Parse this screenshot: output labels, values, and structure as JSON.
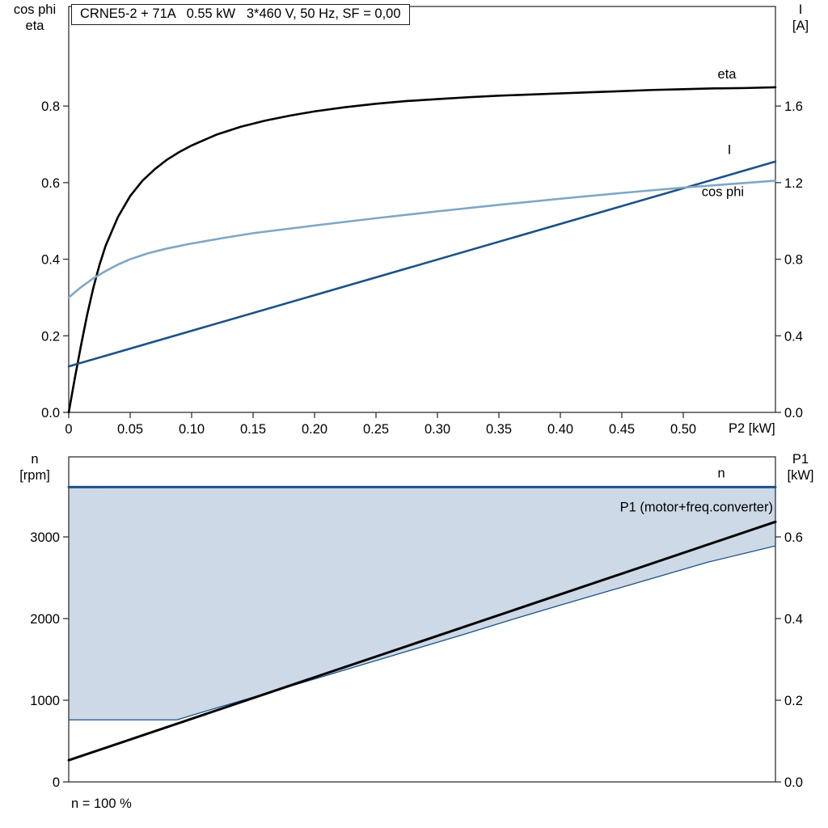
{
  "axes_labels": {
    "top_left_line1": "cos phi",
    "top_left_line2": "eta",
    "top_right_line1": "I",
    "top_right_line2": "[A]",
    "bottom_left_line1": "n",
    "bottom_left_line2": "[rpm]",
    "bottom_right_line1": "P1",
    "bottom_right_line2": "[kW]"
  },
  "colors": {
    "black": "#000000",
    "dark_blue": "#1c5286",
    "light_blue": "#7fa6c5",
    "fill": "#cdd9e6",
    "frame": "#2f3338"
  },
  "chart_data": [
    {
      "type": "line",
      "title": "CRNE5-2 + 71A   0.55 kW   3*460 V, 50 Hz, SF = 0,00",
      "x_axis": {
        "label": "P2 [kW]",
        "min": 0,
        "max": 0.575,
        "ticks": [
          0,
          0.05,
          0.1,
          0.15,
          0.2,
          0.25,
          0.3,
          0.35,
          0.4,
          0.45,
          0.5
        ],
        "tick_labels": [
          "0",
          "0.05",
          "0.10",
          "0.15",
          "0.20",
          "0.25",
          "0.30",
          "0.35",
          "0.40",
          "0.45",
          "0.50"
        ]
      },
      "y_left": {
        "label": "cos phi / eta",
        "min": 0,
        "max": 1.06,
        "ticks": [
          0,
          0.2,
          0.4,
          0.6,
          0.8
        ],
        "tick_labels": [
          "0.0",
          "0.2",
          "0.4",
          "0.6",
          "0.8"
        ]
      },
      "y_right": {
        "label": "I [A]",
        "min": 0,
        "max": 2.12,
        "ticks": [
          0,
          0.4,
          0.8,
          1.2,
          1.6
        ],
        "tick_labels": [
          "0.0",
          "0.4",
          "0.8",
          "1.2",
          "1.6"
        ]
      },
      "series": [
        {
          "name": "eta",
          "axis": "left",
          "color_key": "black",
          "width": 2.6,
          "x": [
            0,
            0.005,
            0.01,
            0.015,
            0.02,
            0.025,
            0.03,
            0.04,
            0.05,
            0.06,
            0.07,
            0.08,
            0.09,
            0.1,
            0.12,
            0.14,
            0.16,
            0.18,
            0.2,
            0.225,
            0.25,
            0.275,
            0.3,
            0.325,
            0.35,
            0.375,
            0.4,
            0.425,
            0.45,
            0.475,
            0.5,
            0.525,
            0.55,
            0.575
          ],
          "y": [
            0,
            0.09,
            0.175,
            0.255,
            0.325,
            0.385,
            0.435,
            0.51,
            0.565,
            0.605,
            0.635,
            0.66,
            0.68,
            0.697,
            0.725,
            0.746,
            0.762,
            0.775,
            0.786,
            0.797,
            0.806,
            0.813,
            0.818,
            0.823,
            0.827,
            0.83,
            0.833,
            0.836,
            0.839,
            0.842,
            0.844,
            0.846,
            0.847,
            0.849
          ],
          "label": {
            "text": "eta",
            "x": 0.528,
            "y": 0.872,
            "anchor": "start"
          }
        },
        {
          "name": "I",
          "axis": "right",
          "color_key": "dark_blue",
          "width": 2.6,
          "x": [
            0,
            0.575
          ],
          "y": [
            0.24,
            1.31
          ],
          "label": {
            "text": "I",
            "x": 0.536,
            "y": 1.35,
            "anchor": "start"
          }
        },
        {
          "name": "cos phi",
          "axis": "left",
          "color_key": "light_blue",
          "width": 2.6,
          "x": [
            0,
            0.01,
            0.02,
            0.03,
            0.04,
            0.05,
            0.065,
            0.08,
            0.1,
            0.125,
            0.15,
            0.175,
            0.2,
            0.25,
            0.3,
            0.35,
            0.4,
            0.45,
            0.5,
            0.55,
            0.575
          ],
          "y": [
            0.3,
            0.327,
            0.35,
            0.369,
            0.386,
            0.4,
            0.416,
            0.428,
            0.441,
            0.455,
            0.468,
            0.478,
            0.488,
            0.507,
            0.525,
            0.542,
            0.558,
            0.573,
            0.587,
            0.599,
            0.605
          ],
          "label": {
            "text": "cos phi",
            "x": 0.515,
            "y": 0.565,
            "anchor": "start"
          }
        }
      ]
    },
    {
      "type": "line",
      "title": "",
      "footnote": "n = 100 %",
      "x_axis": {
        "label": "",
        "min": 0,
        "max": 0.575,
        "ticks": [],
        "tick_labels": []
      },
      "y_left": {
        "label": "n [rpm]",
        "min": 0,
        "max": 3980,
        "ticks": [
          0,
          1000,
          2000,
          3000
        ],
        "tick_labels": [
          "0",
          "1000",
          "2000",
          "3000"
        ]
      },
      "y_right": {
        "label": "P1 [kW]",
        "min": 0,
        "max": 0.796,
        "ticks": [
          0,
          0.2,
          0.4,
          0.6
        ],
        "tick_labels": [
          "0.0",
          "0.2",
          "0.4",
          "0.6"
        ]
      },
      "fill_between": {
        "upper": "n",
        "lower": "n min",
        "color_key": "fill"
      },
      "series": [
        {
          "name": "n",
          "axis": "left",
          "color_key": "dark_blue",
          "width": 3,
          "x": [
            0,
            0.575
          ],
          "y": [
            3610,
            3610
          ],
          "label": {
            "text": "n",
            "x": 0.528,
            "y": 3730,
            "anchor": "start"
          }
        },
        {
          "name": "n min",
          "axis": "left",
          "color_key": "dark_blue",
          "width": 1.3,
          "x": [
            0,
            0.088,
            0.12,
            0.16,
            0.2,
            0.24,
            0.28,
            0.32,
            0.36,
            0.4,
            0.44,
            0.48,
            0.52,
            0.575
          ],
          "y": [
            760,
            760,
            905,
            1080,
            1260,
            1440,
            1620,
            1800,
            1985,
            2165,
            2340,
            2515,
            2690,
            2890
          ]
        },
        {
          "name": "P1 (motor+freq.converter)",
          "axis": "right",
          "color_key": "black",
          "width": 3,
          "x": [
            0,
            0.575
          ],
          "y": [
            0.053,
            0.637
          ],
          "label": {
            "text": "P1 (motor+freq.converter)",
            "x": 0.573,
            "y": 0.662,
            "anchor": "end"
          }
        }
      ]
    }
  ]
}
